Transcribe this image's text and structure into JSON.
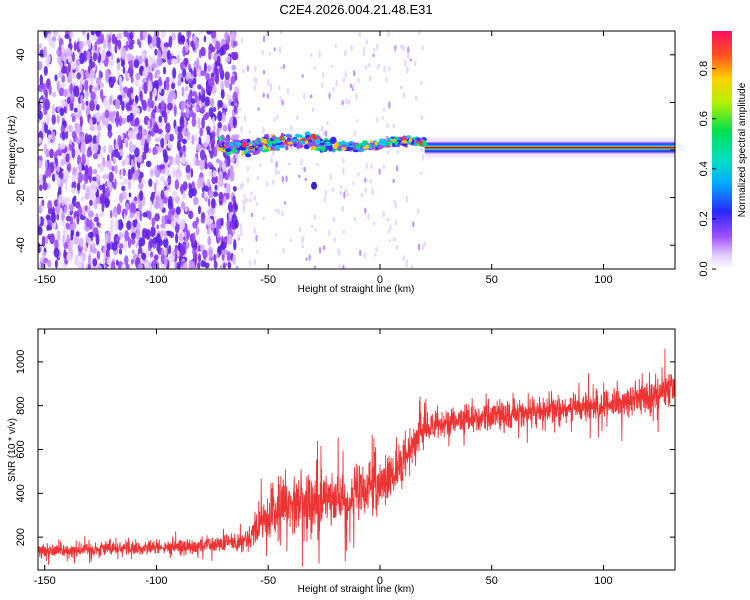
{
  "title": "C2E4.2026.004.21.48.E31",
  "colors": {
    "snr_line": "#ee3333",
    "peak": "#cc0000",
    "scatter": "#7a2de0",
    "colormap": [
      "#ffffff",
      "#d8b3ff",
      "#7a2de0",
      "#2a28ff",
      "#00c8ff",
      "#00e070",
      "#c8f000",
      "#ffcc00",
      "#ff3333",
      "#ff1060"
    ]
  },
  "chart_data": [
    {
      "type": "heatmap",
      "xlabel": "Height of straight line (km)",
      "ylabel": "Frequency (Hz)",
      "xlim": [
        -153,
        132
      ],
      "ylim": [
        -50,
        50
      ],
      "x_ticks": [
        -150,
        -100,
        -50,
        0,
        50,
        100
      ],
      "y_ticks": [
        -40,
        -20,
        0,
        20,
        40
      ],
      "grid": false,
      "regions": [
        {
          "name": "noise",
          "x_range": [
            -153,
            -64
          ],
          "y_range": [
            -50,
            50
          ],
          "level": 0.15
        },
        {
          "name": "signal",
          "x_range": [
            -72,
            132
          ],
          "center_hz": 1,
          "level": 0.9
        }
      ],
      "colorbar": {
        "label": "Normalized spectral amplitude",
        "range": [
          0,
          0.95
        ],
        "ticks": [
          0.0,
          0.2,
          0.4,
          0.6,
          0.8
        ]
      }
    },
    {
      "type": "line",
      "xlabel": "Height of straight line (km)",
      "ylabel": "SNR (10 * v/v)",
      "xlim": [
        -153,
        132
      ],
      "ylim": [
        50,
        1150
      ],
      "x_ticks": [
        -150,
        -100,
        -50,
        0,
        50,
        100
      ],
      "y_ticks": [
        200,
        400,
        600,
        800,
        1000
      ],
      "grid": false,
      "series": [
        {
          "x": [
            -153,
            -140,
            -120,
            -100,
            -80,
            -70,
            -60,
            -55,
            -50,
            -45,
            -40,
            -35,
            -30,
            -25,
            -20,
            -15,
            -10,
            -5,
            0,
            5,
            10,
            15,
            20,
            30,
            40,
            50,
            60,
            70,
            80,
            90,
            100,
            110,
            120,
            132
          ],
          "values": [
            140,
            140,
            150,
            150,
            160,
            170,
            190,
            240,
            300,
            330,
            360,
            360,
            340,
            380,
            400,
            360,
            400,
            420,
            430,
            480,
            540,
            640,
            700,
            730,
            740,
            750,
            760,
            770,
            780,
            790,
            800,
            820,
            840,
            880
          ],
          "spread": [
            60,
            60,
            60,
            60,
            60,
            70,
            90,
            160,
            210,
            230,
            230,
            240,
            240,
            230,
            220,
            200,
            210,
            200,
            220,
            200,
            180,
            150,
            130,
            110,
            110,
            110,
            110,
            110,
            110,
            120,
            120,
            130,
            140,
            150
          ]
        }
      ]
    }
  ]
}
